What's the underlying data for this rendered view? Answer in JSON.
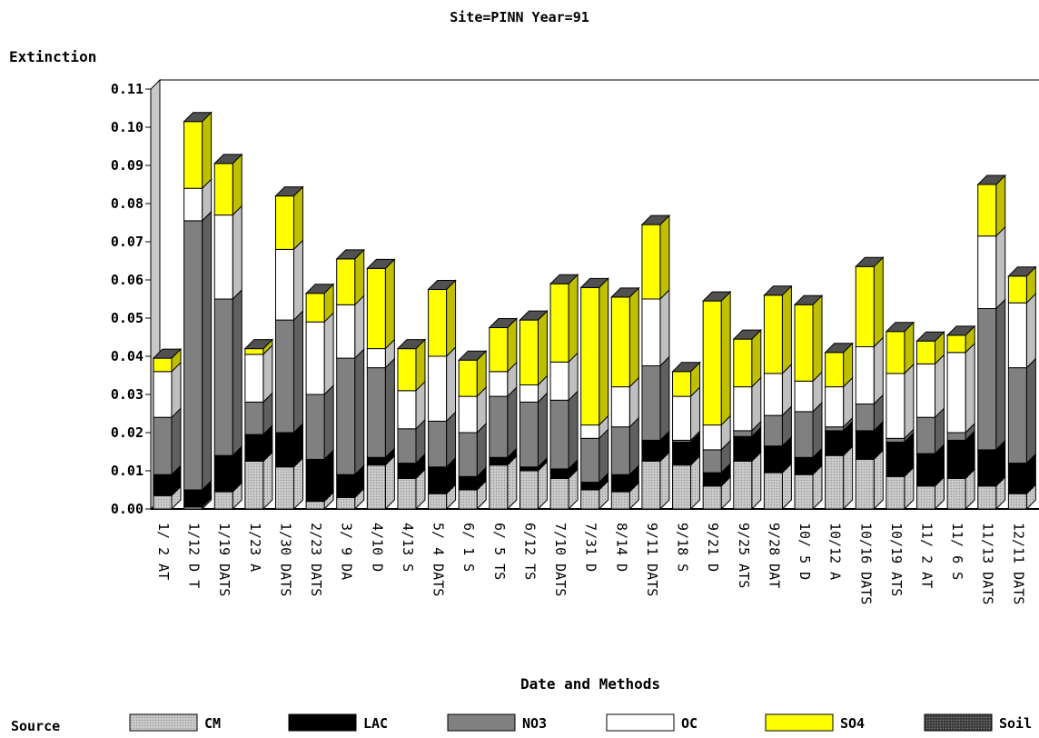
{
  "chart_data": {
    "type": "bar",
    "stacked": true,
    "title": "Site=PINN Year=91",
    "ylabel": "Extinction",
    "xlabel": "Date and Methods",
    "ylim": [
      0,
      0.11
    ],
    "yticks": [
      "0.00",
      "0.01",
      "0.02",
      "0.03",
      "0.04",
      "0.05",
      "0.06",
      "0.07",
      "0.08",
      "0.09",
      "0.10",
      "0.11"
    ],
    "legend_title": "Source",
    "legend_position": "bottom",
    "categories": [
      "1/ 2 AT",
      "1/12 D T",
      "1/19 DATS",
      "1/23 A",
      "1/30 DATS",
      "2/23 DATS",
      "3/ 9 DA",
      "4/10 D",
      "4/13 S",
      "5/ 4 DATS",
      "6/ 1 S",
      "6/ 5 TS",
      "6/12 TS",
      "7/10 DATS",
      "7/31 D",
      "8/14 D",
      "9/11 DATS",
      "9/18 S",
      "9/21 D",
      "9/25 ATS",
      "9/28 DAT",
      "10/ 5 D",
      "10/12 A",
      "10/16 DATS",
      "10/19 ATS",
      "11/ 2 AT",
      "11/ 6 S",
      "11/13 DATS",
      "12/11 DATS"
    ],
    "series": [
      {
        "name": "CM",
        "color": "#b4b4b4",
        "values": [
          0.0035,
          0.0005,
          0.0045,
          0.0125,
          0.011,
          0.002,
          0.003,
          0.0115,
          0.008,
          0.004,
          0.005,
          0.0115,
          0.01,
          0.008,
          0.005,
          0.0045,
          0.0125,
          0.0115,
          0.006,
          0.0125,
          0.0095,
          0.009,
          0.014,
          0.013,
          0.0085,
          0.006,
          0.008,
          0.006,
          0.004
        ]
      },
      {
        "name": "LAC",
        "color": "#000000",
        "values": [
          0.0055,
          0.0045,
          0.0095,
          0.007,
          0.009,
          0.011,
          0.006,
          0.002,
          0.004,
          0.007,
          0.0035,
          0.002,
          0.001,
          0.0025,
          0.002,
          0.0045,
          0.0055,
          0.006,
          0.0035,
          0.0065,
          0.007,
          0.0045,
          0.0065,
          0.0075,
          0.009,
          0.0085,
          0.01,
          0.0095,
          0.008
        ]
      },
      {
        "name": "NO3",
        "color": "#808080",
        "values": [
          0.015,
          0.0705,
          0.041,
          0.0085,
          0.0295,
          0.017,
          0.0305,
          0.0235,
          0.009,
          0.012,
          0.0115,
          0.016,
          0.017,
          0.018,
          0.0115,
          0.0125,
          0.0195,
          0.0005,
          0.006,
          0.0015,
          0.008,
          0.012,
          0.001,
          0.007,
          0.001,
          0.0095,
          0.002,
          0.037,
          0.025
        ]
      },
      {
        "name": "OC",
        "color": "#ffffff",
        "values": [
          0.012,
          0.0085,
          0.022,
          0.0125,
          0.0185,
          0.019,
          0.014,
          0.005,
          0.01,
          0.017,
          0.0095,
          0.0065,
          0.0045,
          0.01,
          0.0035,
          0.0105,
          0.0175,
          0.0115,
          0.0065,
          0.0115,
          0.011,
          0.008,
          0.0105,
          0.015,
          0.017,
          0.014,
          0.021,
          0.019,
          0.017
        ]
      },
      {
        "name": "SO4",
        "color": "#ffff00",
        "values": [
          0.0035,
          0.0175,
          0.0135,
          0.0015,
          0.014,
          0.0075,
          0.012,
          0.021,
          0.011,
          0.0175,
          0.0095,
          0.0115,
          0.017,
          0.0205,
          0.036,
          0.0235,
          0.0195,
          0.0065,
          0.0325,
          0.0125,
          0.0205,
          0.02,
          0.009,
          0.021,
          0.011,
          0.006,
          0.0045,
          0.0135,
          0.007
        ]
      },
      {
        "name": "Soil",
        "color": "#505050",
        "values": [
          0,
          0,
          0,
          0,
          0,
          0,
          0,
          0,
          0,
          0,
          0,
          0,
          0,
          0,
          0,
          0,
          0,
          0,
          0,
          0,
          0,
          0,
          0,
          0,
          0,
          0,
          0,
          0,
          0
        ]
      }
    ]
  }
}
